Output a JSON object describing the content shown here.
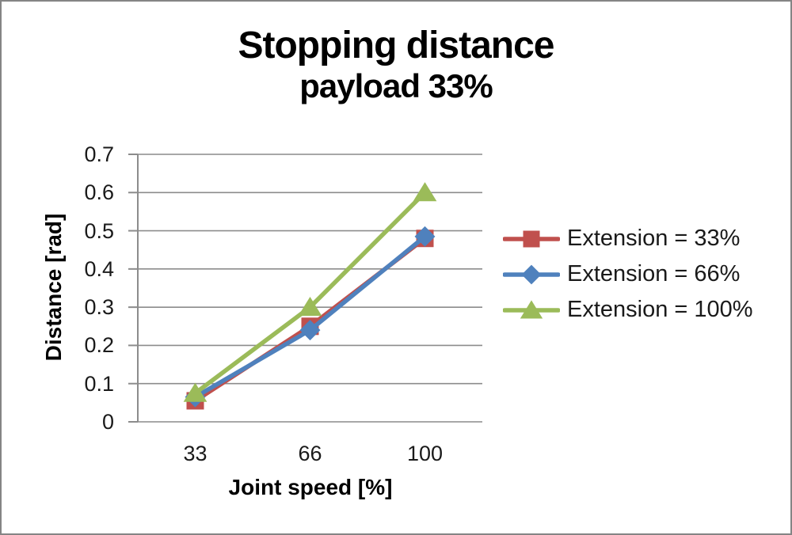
{
  "window": {
    "background": "#FFFFFF",
    "border_color": "#858585"
  },
  "chart_data": {
    "type": "line",
    "title": "Stopping distance",
    "subtitle": "payload 33%",
    "xlabel": "Joint speed [%]",
    "ylabel": "Distance [rad]",
    "categories": [
      "33",
      "66",
      "100"
    ],
    "x_values": [
      33,
      66,
      100
    ],
    "series": [
      {
        "name": "Extension = 33%",
        "color": "#C0504D",
        "marker": "square",
        "values": [
          0.055,
          0.25,
          0.48
        ]
      },
      {
        "name": "Extension = 66%",
        "color": "#4F81BD",
        "marker": "diamond",
        "values": [
          0.065,
          0.24,
          0.485
        ]
      },
      {
        "name": "Extension = 100%",
        "color": "#9BBB59",
        "marker": "triangle",
        "values": [
          0.075,
          0.3,
          0.6
        ]
      }
    ],
    "ylim": [
      0,
      0.7
    ],
    "ytick_values": [
      0,
      0.1,
      0.2,
      0.3,
      0.4,
      0.5,
      0.6,
      0.7
    ],
    "ytick_labels": [
      "0",
      "0.1",
      "0.2",
      "0.3",
      "0.4",
      "0.5",
      "0.6",
      "0.7"
    ],
    "grid": "horizontal",
    "gridline_color": "#8C8C8C",
    "axis_color": "#8C8C8C",
    "text_color": "#1A1A1A",
    "legend_position": "right"
  }
}
